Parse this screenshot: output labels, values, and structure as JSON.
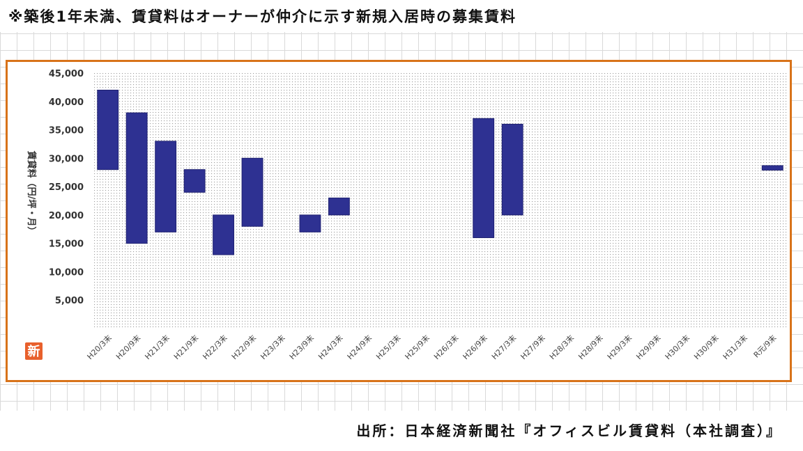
{
  "note": "※築後1年未満、賃貸料はオーナーが仲介に示す新規入居時の募集賃料",
  "source": "出所：日本経済新聞社『オフィスビル賃貸料（本社調査）』",
  "badge": "新",
  "colors": {
    "bar": "#2e3192",
    "frame": "#d8731a",
    "badge": "#e8602c"
  },
  "chart_data": {
    "type": "bar",
    "subtype": "floating-range",
    "ylabel": "賃貸料（円/坪・月）",
    "ylim": [
      0,
      45000
    ],
    "yticks": [
      5000,
      10000,
      15000,
      20000,
      25000,
      30000,
      35000,
      40000,
      45000
    ],
    "ytick_labels": [
      "5,000",
      "10,000",
      "15,000",
      "20,000",
      "25,000",
      "30,000",
      "35,000",
      "40,000",
      "45,000"
    ],
    "grid": "dotted",
    "categories": [
      "H20/3末",
      "H20/9末",
      "H21/3末",
      "H21/9末",
      "H22/3末",
      "H22/9末",
      "H23/3末",
      "H23/9末",
      "H24/3末",
      "H24/9末",
      "H25/3末",
      "H25/9末",
      "H26/3末",
      "H26/9末",
      "H27/3末",
      "H27/9末",
      "H28/3末",
      "H28/9末",
      "H29/3末",
      "H29/9末",
      "H30/3末",
      "H30/9末",
      "H31/3末",
      "R元/9末"
    ],
    "ranges": [
      [
        28000,
        42000
      ],
      [
        15000,
        38000
      ],
      [
        17000,
        33000
      ],
      [
        24000,
        28000
      ],
      [
        13000,
        20000
      ],
      [
        18000,
        30000
      ],
      null,
      [
        17000,
        20000
      ],
      [
        20000,
        23000
      ],
      null,
      null,
      null,
      null,
      [
        16000,
        37000
      ],
      [
        20000,
        36000
      ],
      null,
      null,
      null,
      null,
      null,
      null,
      null,
      null,
      [
        27900,
        28700
      ]
    ]
  }
}
